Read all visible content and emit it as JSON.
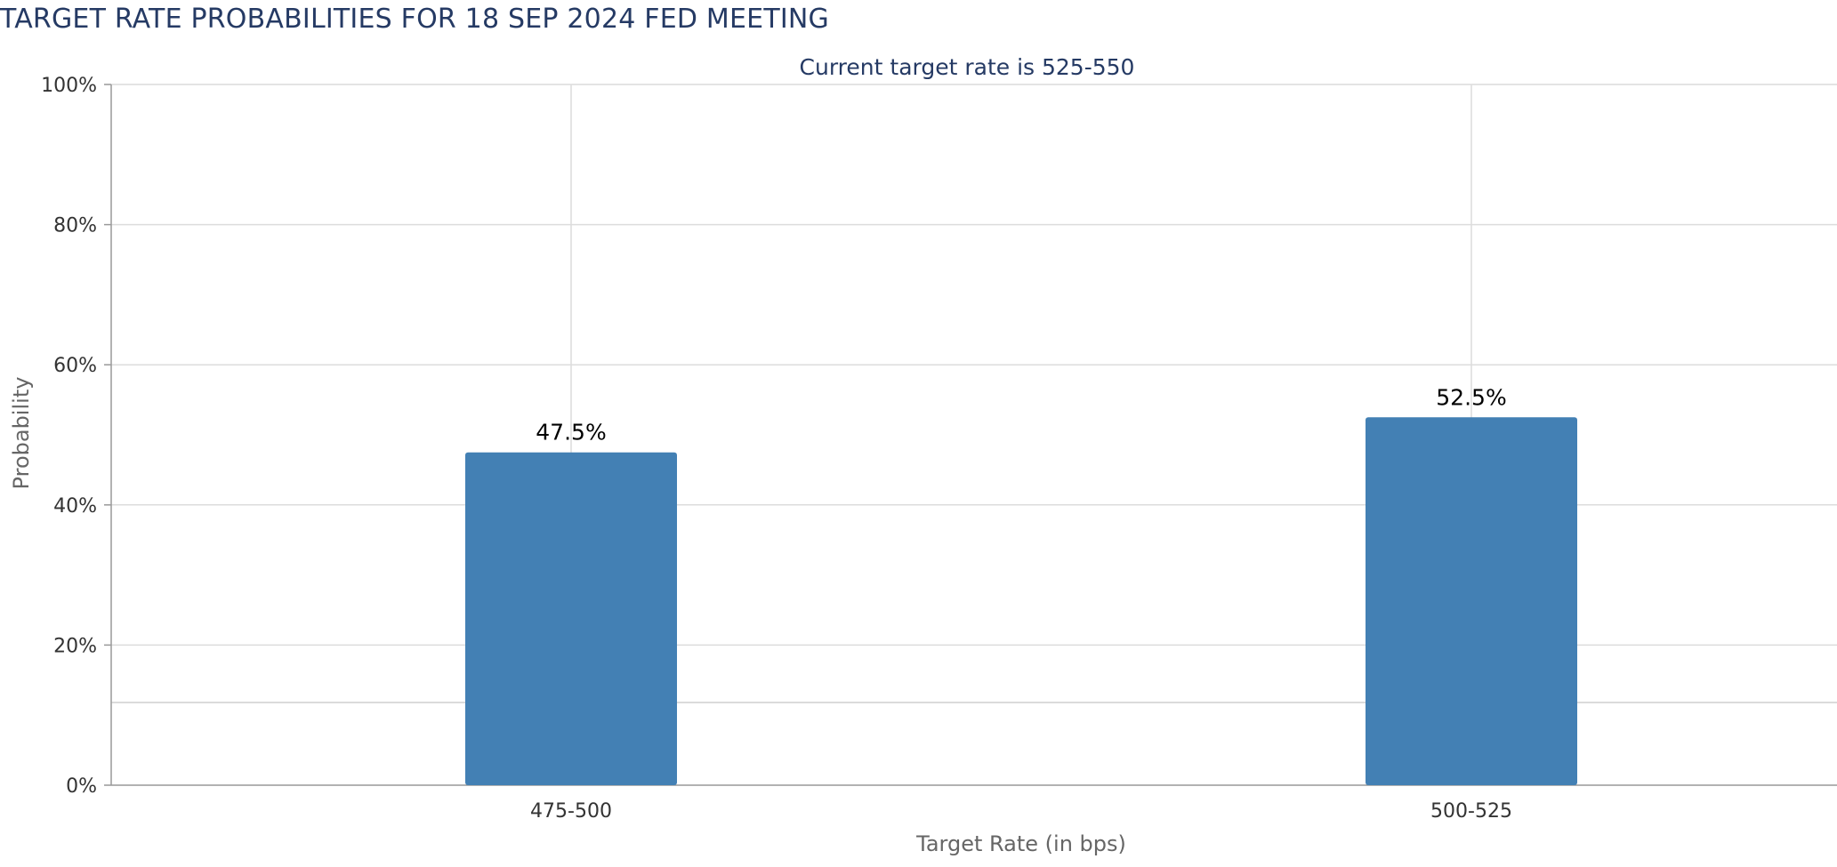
{
  "page": {
    "title": "TARGET RATE PROBABILITIES FOR 18 SEP 2024 FED MEETING"
  },
  "chart_data": {
    "type": "bar",
    "subtitle": "Current target rate is 525-550",
    "categories": [
      "475-500",
      "500-525"
    ],
    "values": [
      47.5,
      52.5
    ],
    "data_labels": [
      "47.5%",
      "52.5%"
    ],
    "xlabel": "Target Rate (in bps)",
    "ylabel": "Probability",
    "ylim": [
      0,
      100
    ],
    "yticks": [
      0,
      20,
      40,
      60,
      80,
      100
    ],
    "ytick_labels": [
      "0%",
      "20%",
      "40%",
      "60%",
      "80%",
      "100%"
    ],
    "grid": true,
    "bar_color": "#4380b4"
  },
  "colors": {
    "title": "#253a64",
    "axis_text": "#333333",
    "grid": "#dcdcdc"
  }
}
